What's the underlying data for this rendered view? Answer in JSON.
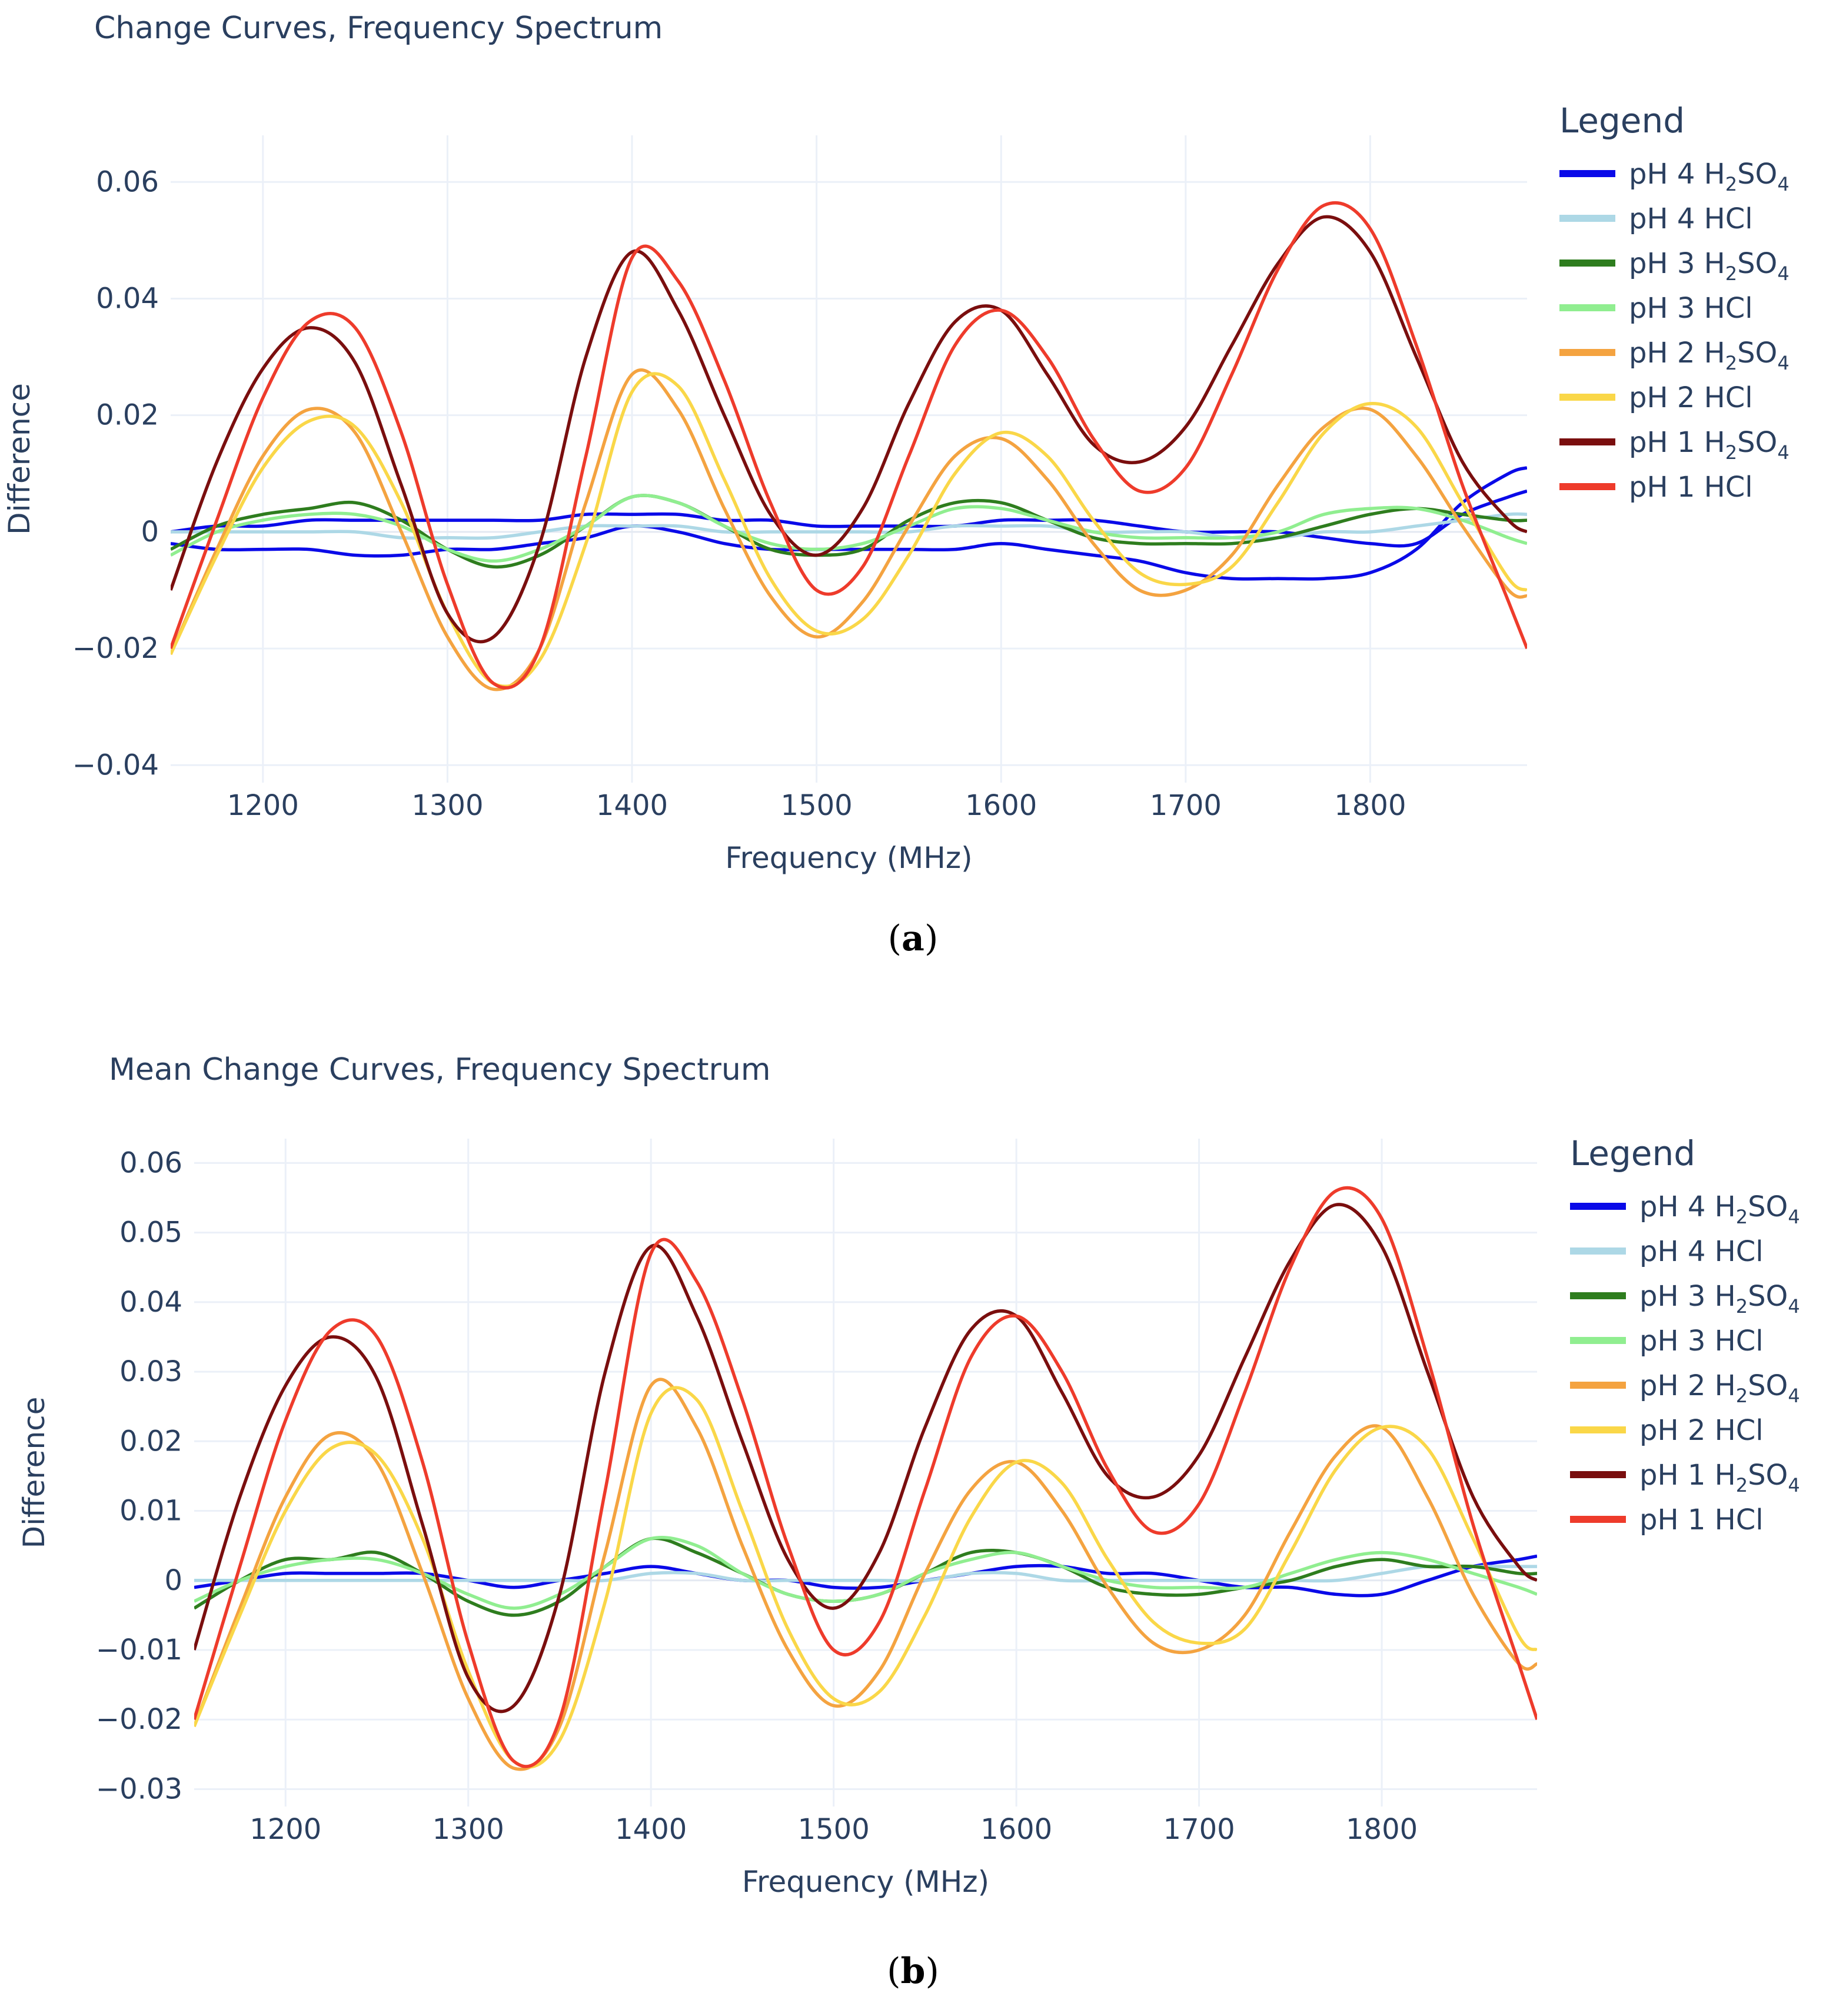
{
  "chart_data": [
    {
      "type": "line",
      "title": "Change Curves, Frequency Spectrum",
      "xlabel": "Frequency (MHz)",
      "ylabel": "Difference",
      "xlim": [
        1150,
        1885
      ],
      "ylim": [
        -0.043,
        0.068
      ],
      "x_ticks": [
        1200,
        1300,
        1400,
        1500,
        1600,
        1700,
        1800
      ],
      "x_tick_labels": [
        "1200",
        "1300",
        "1400",
        "1500",
        "1600",
        "1700",
        "1800"
      ],
      "y_ticks": [
        0.06,
        0.04,
        0.02,
        0,
        -0.02,
        -0.04
      ],
      "y_tick_labels": [
        "0.06",
        "0.04",
        "0.02",
        "0",
        "−0.02",
        "−0.04"
      ],
      "grid": true,
      "legend_title": "Legend",
      "legend_position": "right",
      "legend": [
        {
          "base": "pH 4 H",
          "sub": "2",
          "mid": "SO",
          "sub2": "4",
          "color": "#0a0ae8"
        },
        {
          "base": "pH 4 HCl",
          "sub": "",
          "mid": "",
          "sub2": "",
          "color": "#add8e6"
        },
        {
          "base": "pH 3 H",
          "sub": "2",
          "mid": "SO",
          "sub2": "4",
          "color": "#2e7d1e"
        },
        {
          "base": "pH 3 HCl",
          "sub": "",
          "mid": "",
          "sub2": "",
          "color": "#90ee90"
        },
        {
          "base": "pH 2 H",
          "sub": "2",
          "mid": "SO",
          "sub2": "4",
          "color": "#f4a340"
        },
        {
          "base": "pH 2 HCl",
          "sub": "",
          "mid": "",
          "sub2": "",
          "color": "#fad748"
        },
        {
          "base": "pH 1 H",
          "sub": "2",
          "mid": "SO",
          "sub2": "4",
          "color": "#7a0e0e"
        },
        {
          "base": "pH 1 HCl",
          "sub": "",
          "mid": "",
          "sub2": "",
          "color": "#ee3b2b"
        }
      ],
      "x": [
        1150,
        1175,
        1200,
        1225,
        1250,
        1275,
        1300,
        1325,
        1350,
        1375,
        1400,
        1425,
        1450,
        1475,
        1500,
        1525,
        1550,
        1575,
        1600,
        1625,
        1650,
        1675,
        1700,
        1725,
        1750,
        1775,
        1800,
        1825,
        1850,
        1875,
        1885
      ],
      "series": [
        {
          "name": "pH 4 H2SO4 (a)",
          "color": "#0a0ae8",
          "values": [
            0.0,
            0.001,
            0.001,
            0.002,
            0.002,
            0.002,
            0.002,
            0.002,
            0.002,
            0.003,
            0.003,
            0.003,
            0.002,
            0.002,
            0.001,
            0.001,
            0.001,
            0.001,
            0.002,
            0.002,
            0.002,
            0.001,
            0.0,
            0.0,
            0.0,
            -0.001,
            -0.002,
            -0.002,
            0.003,
            0.006,
            0.007
          ]
        },
        {
          "name": "pH 4 H2SO4 (b)",
          "color": "#0a0ae8",
          "values": [
            -0.002,
            -0.003,
            -0.003,
            -0.003,
            -0.004,
            -0.004,
            -0.003,
            -0.003,
            -0.002,
            -0.001,
            0.001,
            0.0,
            -0.002,
            -0.003,
            -0.003,
            -0.003,
            -0.003,
            -0.003,
            -0.002,
            -0.003,
            -0.004,
            -0.005,
            -0.007,
            -0.008,
            -0.008,
            -0.008,
            -0.007,
            -0.003,
            0.005,
            0.01,
            0.011
          ]
        },
        {
          "name": "pH 4 HCl",
          "color": "#add8e6",
          "values": [
            0.0,
            0.0,
            0.0,
            0.0,
            0.0,
            -0.001,
            -0.001,
            -0.001,
            0.0,
            0.001,
            0.001,
            0.001,
            0.0,
            0.0,
            0.0,
            0.0,
            0.0,
            0.001,
            0.001,
            0.001,
            0.0,
            0.0,
            0.0,
            -0.001,
            -0.001,
            0.0,
            0.0,
            0.001,
            0.002,
            0.003,
            0.003
          ]
        },
        {
          "name": "pH 3 H2SO4",
          "color": "#2e7d1e",
          "values": [
            -0.003,
            0.001,
            0.003,
            0.004,
            0.005,
            0.002,
            -0.003,
            -0.006,
            -0.004,
            0.001,
            0.006,
            0.005,
            0.001,
            -0.003,
            -0.004,
            -0.003,
            0.002,
            0.005,
            0.005,
            0.002,
            -0.001,
            -0.002,
            -0.002,
            -0.002,
            -0.001,
            0.001,
            0.003,
            0.004,
            0.003,
            0.002,
            0.002
          ]
        },
        {
          "name": "pH 3 HCl",
          "color": "#90ee90",
          "values": [
            -0.004,
            0.0,
            0.002,
            0.003,
            0.003,
            0.001,
            -0.003,
            -0.005,
            -0.003,
            0.001,
            0.006,
            0.005,
            0.001,
            -0.002,
            -0.003,
            -0.002,
            0.001,
            0.004,
            0.004,
            0.002,
            0.0,
            -0.001,
            -0.001,
            -0.001,
            0.0,
            0.003,
            0.004,
            0.004,
            0.002,
            -0.001,
            -0.002
          ]
        },
        {
          "name": "pH 2 H2SO4",
          "color": "#f4a340",
          "values": [
            -0.021,
            -0.003,
            0.013,
            0.021,
            0.017,
            0.0,
            -0.018,
            -0.027,
            -0.02,
            0.005,
            0.027,
            0.021,
            0.004,
            -0.011,
            -0.018,
            -0.012,
            0.001,
            0.013,
            0.016,
            0.009,
            -0.002,
            -0.01,
            -0.01,
            -0.004,
            0.008,
            0.018,
            0.021,
            0.013,
            0.001,
            -0.01,
            -0.011
          ]
        },
        {
          "name": "pH 2 HCl",
          "color": "#fad748",
          "values": [
            -0.021,
            -0.004,
            0.011,
            0.019,
            0.018,
            0.005,
            -0.014,
            -0.026,
            -0.022,
            -0.002,
            0.024,
            0.025,
            0.009,
            -0.008,
            -0.017,
            -0.015,
            -0.004,
            0.01,
            0.017,
            0.013,
            0.002,
            -0.007,
            -0.009,
            -0.006,
            0.005,
            0.017,
            0.022,
            0.018,
            0.005,
            -0.008,
            -0.01
          ]
        },
        {
          "name": "pH 1 H2SO4",
          "color": "#7a0e0e",
          "values": [
            -0.01,
            0.012,
            0.028,
            0.035,
            0.029,
            0.008,
            -0.014,
            -0.018,
            -0.002,
            0.03,
            0.048,
            0.038,
            0.02,
            0.003,
            -0.004,
            0.004,
            0.022,
            0.036,
            0.038,
            0.027,
            0.015,
            0.012,
            0.018,
            0.032,
            0.046,
            0.054,
            0.048,
            0.03,
            0.012,
            0.002,
            0.0
          ]
        },
        {
          "name": "pH 1 HCl",
          "color": "#ee3b2b",
          "values": [
            -0.02,
            0.002,
            0.023,
            0.036,
            0.035,
            0.017,
            -0.009,
            -0.026,
            -0.02,
            0.013,
            0.047,
            0.043,
            0.026,
            0.005,
            -0.01,
            -0.006,
            0.013,
            0.032,
            0.038,
            0.03,
            0.016,
            0.007,
            0.011,
            0.027,
            0.045,
            0.056,
            0.052,
            0.032,
            0.008,
            -0.012,
            -0.02
          ]
        }
      ]
    },
    {
      "type": "line",
      "title": "Mean Change Curves, Frequency Spectrum",
      "xlabel": "Frequency (MHz)",
      "ylabel": "Difference",
      "xlim": [
        1150,
        1885
      ],
      "ylim": [
        -0.0325,
        0.0635
      ],
      "x_ticks": [
        1200,
        1300,
        1400,
        1500,
        1600,
        1700,
        1800
      ],
      "x_tick_labels": [
        "1200",
        "1300",
        "1400",
        "1500",
        "1600",
        "1700",
        "1800"
      ],
      "y_ticks": [
        0.06,
        0.05,
        0.04,
        0.03,
        0.02,
        0.01,
        0,
        -0.01,
        -0.02,
        -0.03
      ],
      "y_tick_labels": [
        "0.06",
        "0.05",
        "0.04",
        "0.03",
        "0.02",
        "0.01",
        "0",
        "−0.01",
        "−0.02",
        "−0.03"
      ],
      "grid": true,
      "legend_title": "Legend",
      "legend_position": "right",
      "legend": [
        {
          "base": "pH 4 H",
          "sub": "2",
          "mid": "SO",
          "sub2": "4",
          "color": "#0a0ae8"
        },
        {
          "base": "pH 4 HCl",
          "sub": "",
          "mid": "",
          "sub2": "",
          "color": "#add8e6"
        },
        {
          "base": "pH 3 H",
          "sub": "2",
          "mid": "SO",
          "sub2": "4",
          "color": "#2e7d1e"
        },
        {
          "base": "pH 3 HCl",
          "sub": "",
          "mid": "",
          "sub2": "",
          "color": "#90ee90"
        },
        {
          "base": "pH 2 H",
          "sub": "2",
          "mid": "SO",
          "sub2": "4",
          "color": "#f4a340"
        },
        {
          "base": "pH 2 HCl",
          "sub": "",
          "mid": "",
          "sub2": "",
          "color": "#fad748"
        },
        {
          "base": "pH 1 H",
          "sub": "2",
          "mid": "SO",
          "sub2": "4",
          "color": "#7a0e0e"
        },
        {
          "base": "pH 1 HCl",
          "sub": "",
          "mid": "",
          "sub2": "",
          "color": "#ee3b2b"
        }
      ],
      "x": [
        1150,
        1175,
        1200,
        1225,
        1250,
        1275,
        1300,
        1325,
        1350,
        1375,
        1400,
        1425,
        1450,
        1475,
        1500,
        1525,
        1550,
        1575,
        1600,
        1625,
        1650,
        1675,
        1700,
        1725,
        1750,
        1775,
        1800,
        1825,
        1850,
        1875,
        1885
      ],
      "series": [
        {
          "name": "pH 4 H2SO4",
          "color": "#0a0ae8",
          "values": [
            -0.001,
            0.0,
            0.001,
            0.001,
            0.001,
            0.001,
            0.0,
            -0.001,
            0.0,
            0.001,
            0.002,
            0.001,
            0.0,
            0.0,
            -0.001,
            -0.001,
            0.0,
            0.001,
            0.002,
            0.002,
            0.001,
            0.001,
            0.0,
            -0.001,
            -0.001,
            -0.002,
            -0.002,
            0.0,
            0.002,
            0.003,
            0.0035
          ]
        },
        {
          "name": "pH 4 HCl",
          "color": "#add8e6",
          "values": [
            0.0,
            0.0,
            0.0,
            0.0,
            0.0,
            0.0,
            0.0,
            0.0,
            0.0,
            0.0,
            0.001,
            0.001,
            0.0,
            0.0,
            0.0,
            0.0,
            0.0,
            0.001,
            0.001,
            0.0,
            0.0,
            0.0,
            0.0,
            0.0,
            0.0,
            0.0,
            0.001,
            0.002,
            0.002,
            0.002,
            0.002
          ]
        },
        {
          "name": "pH 3 H2SO4",
          "color": "#2e7d1e",
          "values": [
            -0.004,
            0.0,
            0.003,
            0.003,
            0.004,
            0.001,
            -0.003,
            -0.005,
            -0.003,
            0.002,
            0.006,
            0.004,
            0.001,
            -0.002,
            -0.003,
            -0.002,
            0.001,
            0.004,
            0.004,
            0.002,
            -0.001,
            -0.002,
            -0.002,
            -0.001,
            0.0,
            0.002,
            0.003,
            0.002,
            0.002,
            0.001,
            0.001
          ]
        },
        {
          "name": "pH 3 HCl",
          "color": "#90ee90",
          "values": [
            -0.003,
            0.0,
            0.002,
            0.003,
            0.003,
            0.001,
            -0.002,
            -0.004,
            -0.002,
            0.002,
            0.006,
            0.005,
            0.001,
            -0.002,
            -0.003,
            -0.002,
            0.001,
            0.003,
            0.004,
            0.002,
            0.0,
            -0.001,
            -0.001,
            -0.001,
            0.001,
            0.003,
            0.004,
            0.003,
            0.001,
            -0.001,
            -0.002
          ]
        },
        {
          "name": "pH 2 H2SO4",
          "color": "#f4a340",
          "values": [
            -0.021,
            -0.004,
            0.012,
            0.021,
            0.017,
            0.001,
            -0.017,
            -0.027,
            -0.021,
            0.004,
            0.028,
            0.022,
            0.005,
            -0.01,
            -0.018,
            -0.013,
            0.001,
            0.013,
            0.017,
            0.01,
            -0.001,
            -0.009,
            -0.01,
            -0.005,
            0.007,
            0.018,
            0.022,
            0.012,
            -0.002,
            -0.012,
            -0.012
          ]
        },
        {
          "name": "pH 2 HCl",
          "color": "#fad748",
          "values": [
            -0.021,
            -0.005,
            0.01,
            0.019,
            0.018,
            0.006,
            -0.013,
            -0.026,
            -0.023,
            -0.003,
            0.024,
            0.026,
            0.01,
            -0.007,
            -0.017,
            -0.016,
            -0.005,
            0.009,
            0.017,
            0.014,
            0.003,
            -0.006,
            -0.009,
            -0.007,
            0.004,
            0.016,
            0.022,
            0.019,
            0.006,
            -0.008,
            -0.01
          ]
        },
        {
          "name": "pH 1 H2SO4",
          "color": "#7a0e0e",
          "values": [
            -0.01,
            0.012,
            0.028,
            0.035,
            0.029,
            0.008,
            -0.014,
            -0.018,
            -0.002,
            0.03,
            0.048,
            0.038,
            0.02,
            0.003,
            -0.004,
            0.004,
            0.022,
            0.036,
            0.038,
            0.027,
            0.015,
            0.012,
            0.018,
            0.032,
            0.046,
            0.054,
            0.048,
            0.03,
            0.012,
            0.002,
            0.0
          ]
        },
        {
          "name": "pH 1 HCl",
          "color": "#ee3b2b",
          "values": [
            -0.02,
            0.002,
            0.023,
            0.036,
            0.035,
            0.017,
            -0.009,
            -0.026,
            -0.02,
            0.013,
            0.047,
            0.043,
            0.026,
            0.005,
            -0.01,
            -0.006,
            0.013,
            0.032,
            0.038,
            0.03,
            0.016,
            0.007,
            0.011,
            0.027,
            0.045,
            0.056,
            0.052,
            0.032,
            0.008,
            -0.012,
            -0.02
          ]
        }
      ]
    }
  ],
  "captions": [
    "a",
    "b"
  ]
}
